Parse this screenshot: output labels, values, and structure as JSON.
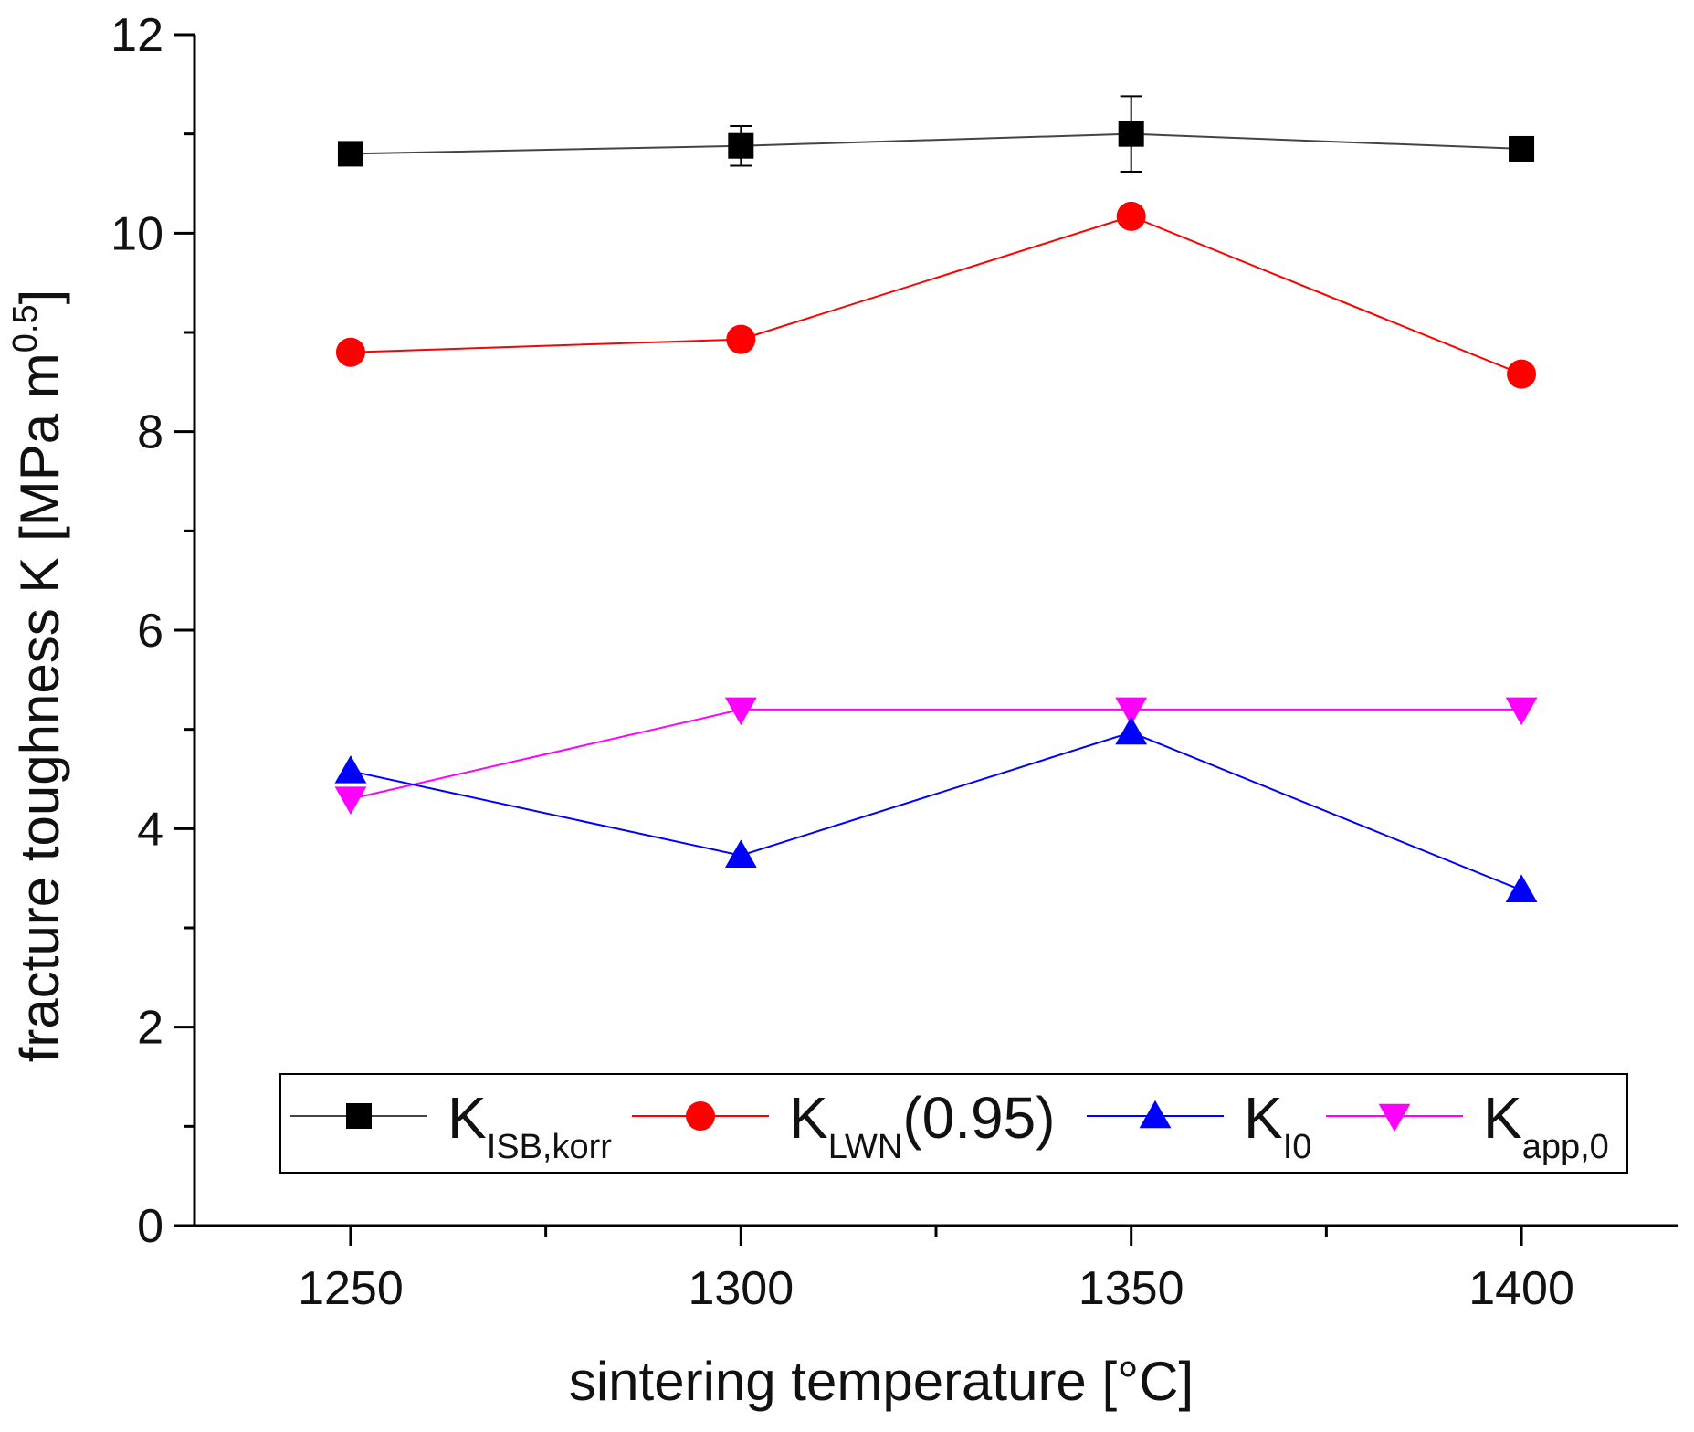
{
  "chart_data": {
    "type": "line",
    "title": "",
    "xlabel": "sintering temperature [°C]",
    "ylabel": {
      "text": "fracture toughness K [MPa m",
      "superscript": "0.5",
      "suffix": "]"
    },
    "x": [
      1250,
      1300,
      1350,
      1400
    ],
    "xlim": [
      1230,
      1420
    ],
    "ylim": [
      0,
      12
    ],
    "xticks": [
      1250,
      1300,
      1350,
      1400
    ],
    "yticks": [
      0,
      2,
      4,
      6,
      8,
      10,
      12
    ],
    "grid": false,
    "legend_position": "bottom",
    "series": [
      {
        "key": "kisb",
        "label_main": "K",
        "label_sub": "ISB,korr",
        "label_after": "",
        "marker": "square",
        "color": "#000000",
        "line_color": "#444444",
        "values": [
          10.8,
          10.88,
          11.0,
          10.85
        ],
        "errors": [
          0.0,
          0.2,
          0.38,
          0.0
        ]
      },
      {
        "key": "klwn",
        "label_main": "K",
        "label_sub": "LWN",
        "label_after": "(0.95)",
        "marker": "circle",
        "color": "#ff0000",
        "line_color": "#ff0000",
        "values": [
          8.8,
          8.93,
          10.17,
          8.58
        ]
      },
      {
        "key": "ki0",
        "label_main": "K",
        "label_sub": "I0",
        "label_after": "",
        "marker": "triangle-up",
        "color": "#0000ff",
        "line_color": "#0000ff",
        "values": [
          4.58,
          3.73,
          4.97,
          3.38
        ]
      },
      {
        "key": "kapp",
        "label_main": "K",
        "label_sub": "app,0",
        "label_after": "",
        "marker": "triangle-down",
        "color": "#ff00ff",
        "line_color": "#ff00ff",
        "values": [
          4.3,
          5.2,
          5.2,
          5.2
        ]
      }
    ]
  }
}
